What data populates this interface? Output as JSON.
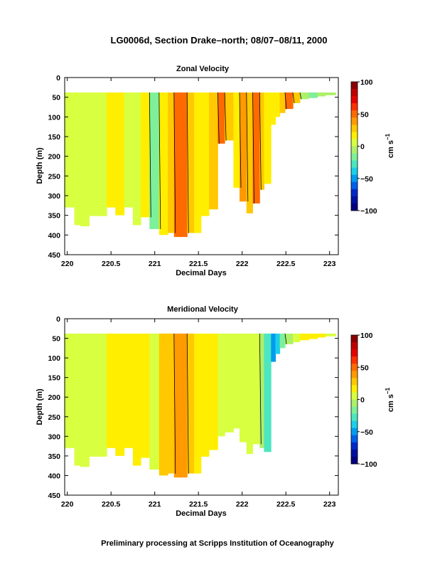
{
  "header": {
    "title": "LG0006d, Section Drake–north; 08/07–08/11, 2000"
  },
  "footer": {
    "text": "Preliminary processing at Scripps Institution of Oceanography"
  },
  "chart_data": [
    {
      "type": "heatmap",
      "title": "Zonal Velocity",
      "xlabel": "Decimal Days",
      "ylabel": "Depth (m)",
      "xlim": [
        219.97,
        223.1
      ],
      "ylim": [
        450,
        0
      ],
      "xticks": [
        220,
        220.5,
        221,
        221.5,
        222,
        222.5,
        223
      ],
      "xtick_labels": [
        "220",
        "220.5",
        "221",
        "221.5",
        "222",
        "222.5",
        "223"
      ],
      "yticks": [
        0,
        50,
        100,
        150,
        200,
        250,
        300,
        350,
        400,
        450
      ],
      "colorbar": {
        "label": "cm s",
        "label_exponent": "−1",
        "ticks": [
          100,
          50,
          0,
          -50,
          -100
        ],
        "tick_labels": [
          "100",
          "50",
          "0",
          "−50",
          "−100"
        ],
        "range": [
          -100,
          100
        ],
        "colors_top_to_bottom": [
          "#8b0000",
          "#c00000",
          "#e60000",
          "#ff3000",
          "#ff6a00",
          "#ff9a00",
          "#ffc800",
          "#ffee00",
          "#d8ff40",
          "#aef06a",
          "#7ef09a",
          "#4ce6c0",
          "#1ccfe8",
          "#009bf0",
          "#0060e8",
          "#0028c8",
          "#0010a0",
          "#000080"
        ]
      },
      "columns": [
        {
          "x0": 219.97,
          "x1": 220.08,
          "bottom": 330,
          "v": 6
        },
        {
          "x0": 220.08,
          "x1": 220.15,
          "bottom": 375,
          "v": 2
        },
        {
          "x0": 220.15,
          "x1": 220.25,
          "bottom": 378,
          "v": 4
        },
        {
          "x0": 220.25,
          "x1": 220.33,
          "bottom": 352,
          "v": 8
        },
        {
          "x0": 220.33,
          "x1": 220.45,
          "bottom": 352,
          "v": 5
        },
        {
          "x0": 220.45,
          "x1": 220.55,
          "bottom": 330,
          "v": 14
        },
        {
          "x0": 220.55,
          "x1": 220.65,
          "bottom": 350,
          "v": 20
        },
        {
          "x0": 220.65,
          "x1": 220.75,
          "bottom": 330,
          "v": 10
        },
        {
          "x0": 220.75,
          "x1": 220.84,
          "bottom": 375,
          "v": 8
        },
        {
          "x0": 220.84,
          "x1": 220.94,
          "bottom": 355,
          "v": 18
        },
        {
          "x0": 220.94,
          "x1": 221.05,
          "bottom": 385,
          "v": -20
        },
        {
          "x0": 221.05,
          "x1": 221.15,
          "bottom": 400,
          "v": 20
        },
        {
          "x0": 221.15,
          "x1": 221.22,
          "bottom": 395,
          "v": 33
        },
        {
          "x0": 221.22,
          "x1": 221.37,
          "bottom": 405,
          "v": 45
        },
        {
          "x0": 221.37,
          "x1": 221.45,
          "bottom": 395,
          "v": 25
        },
        {
          "x0": 221.45,
          "x1": 221.53,
          "bottom": 395,
          "v": 12
        },
        {
          "x0": 221.53,
          "x1": 221.62,
          "bottom": 352,
          "v": 14
        },
        {
          "x0": 221.62,
          "x1": 221.72,
          "bottom": 335,
          "v": 30
        },
        {
          "x0": 221.72,
          "x1": 221.8,
          "bottom": 168,
          "v": 45
        },
        {
          "x0": 221.8,
          "x1": 221.9,
          "bottom": 160,
          "v": 28
        },
        {
          "x0": 221.9,
          "x1": 221.97,
          "bottom": 280,
          "v": 12
        },
        {
          "x0": 221.97,
          "x1": 222.05,
          "bottom": 315,
          "v": 42
        },
        {
          "x0": 222.05,
          "x1": 222.12,
          "bottom": 345,
          "v": 25
        },
        {
          "x0": 222.12,
          "x1": 222.2,
          "bottom": 320,
          "v": 46
        },
        {
          "x0": 222.2,
          "x1": 222.25,
          "bottom": 285,
          "v": 28
        },
        {
          "x0": 222.25,
          "x1": 222.33,
          "bottom": 270,
          "v": 18
        },
        {
          "x0": 222.33,
          "x1": 222.38,
          "bottom": 120,
          "v": 18
        },
        {
          "x0": 222.38,
          "x1": 222.43,
          "bottom": 100,
          "v": 22
        },
        {
          "x0": 222.43,
          "x1": 222.49,
          "bottom": 90,
          "v": 30
        },
        {
          "x0": 222.49,
          "x1": 222.58,
          "bottom": 80,
          "v": 45
        },
        {
          "x0": 222.58,
          "x1": 222.66,
          "bottom": 65,
          "v": 25
        },
        {
          "x0": 222.66,
          "x1": 222.76,
          "bottom": 55,
          "v": -5
        },
        {
          "x0": 222.76,
          "x1": 222.86,
          "bottom": 52,
          "v": -15
        },
        {
          "x0": 222.86,
          "x1": 222.95,
          "bottom": 48,
          "v": -8
        },
        {
          "x0": 222.95,
          "x1": 223.07,
          "bottom": 45,
          "v": 0
        }
      ]
    },
    {
      "type": "heatmap",
      "title": "Meridional Velocity",
      "xlabel": "Decimal Days",
      "ylabel": "Depth (m)",
      "xlim": [
        219.97,
        223.1
      ],
      "ylim": [
        450,
        0
      ],
      "xticks": [
        220,
        220.5,
        221,
        221.5,
        222,
        222.5,
        223
      ],
      "xtick_labels": [
        "220",
        "220.5",
        "221",
        "221.5",
        "222",
        "222.5",
        "223"
      ],
      "yticks": [
        0,
        50,
        100,
        150,
        200,
        250,
        300,
        350,
        400,
        450
      ],
      "colorbar": {
        "label": "cm s",
        "label_exponent": "−1",
        "ticks": [
          100,
          50,
          0,
          -50,
          -100
        ],
        "tick_labels": [
          "100",
          "50",
          "0",
          "−50",
          "−100"
        ],
        "range": [
          -100,
          100
        ],
        "colors_top_to_bottom": [
          "#8b0000",
          "#c00000",
          "#e60000",
          "#ff3000",
          "#ff6a00",
          "#ff9a00",
          "#ffc800",
          "#ffee00",
          "#d8ff40",
          "#aef06a",
          "#7ef09a",
          "#4ce6c0",
          "#1ccfe8",
          "#009bf0",
          "#0060e8",
          "#0028c8",
          "#0010a0",
          "#000080"
        ]
      },
      "columns": [
        {
          "x0": 219.97,
          "x1": 220.08,
          "bottom": 330,
          "v": 2
        },
        {
          "x0": 220.08,
          "x1": 220.15,
          "bottom": 375,
          "v": 4
        },
        {
          "x0": 220.15,
          "x1": 220.25,
          "bottom": 378,
          "v": 2
        },
        {
          "x0": 220.25,
          "x1": 220.33,
          "bottom": 352,
          "v": 5
        },
        {
          "x0": 220.33,
          "x1": 220.45,
          "bottom": 352,
          "v": 6
        },
        {
          "x0": 220.45,
          "x1": 220.55,
          "bottom": 330,
          "v": 12
        },
        {
          "x0": 220.55,
          "x1": 220.65,
          "bottom": 350,
          "v": 14
        },
        {
          "x0": 220.65,
          "x1": 220.75,
          "bottom": 330,
          "v": 18
        },
        {
          "x0": 220.75,
          "x1": 220.84,
          "bottom": 375,
          "v": 22
        },
        {
          "x0": 220.84,
          "x1": 220.94,
          "bottom": 355,
          "v": 20
        },
        {
          "x0": 220.94,
          "x1": 221.05,
          "bottom": 385,
          "v": 8
        },
        {
          "x0": 221.05,
          "x1": 221.15,
          "bottom": 400,
          "v": 24
        },
        {
          "x0": 221.15,
          "x1": 221.22,
          "bottom": 395,
          "v": 30
        },
        {
          "x0": 221.22,
          "x1": 221.37,
          "bottom": 405,
          "v": 40
        },
        {
          "x0": 221.37,
          "x1": 221.45,
          "bottom": 395,
          "v": 28
        },
        {
          "x0": 221.45,
          "x1": 221.53,
          "bottom": 395,
          "v": 20
        },
        {
          "x0": 221.53,
          "x1": 221.62,
          "bottom": 352,
          "v": 18
        },
        {
          "x0": 221.62,
          "x1": 221.72,
          "bottom": 335,
          "v": 14
        },
        {
          "x0": 221.72,
          "x1": 221.8,
          "bottom": 300,
          "v": 10
        },
        {
          "x0": 221.8,
          "x1": 221.9,
          "bottom": 290,
          "v": 8
        },
        {
          "x0": 221.9,
          "x1": 221.97,
          "bottom": 280,
          "v": 4
        },
        {
          "x0": 221.97,
          "x1": 222.05,
          "bottom": 315,
          "v": 8
        },
        {
          "x0": 222.05,
          "x1": 222.12,
          "bottom": 345,
          "v": 4
        },
        {
          "x0": 222.12,
          "x1": 222.2,
          "bottom": 320,
          "v": 6
        },
        {
          "x0": 222.2,
          "x1": 222.25,
          "bottom": 330,
          "v": -10
        },
        {
          "x0": 222.25,
          "x1": 222.33,
          "bottom": 340,
          "v": -30
        },
        {
          "x0": 222.33,
          "x1": 222.38,
          "bottom": 110,
          "v": -55
        },
        {
          "x0": 222.38,
          "x1": 222.43,
          "bottom": 90,
          "v": -40
        },
        {
          "x0": 222.43,
          "x1": 222.49,
          "bottom": 75,
          "v": -20
        },
        {
          "x0": 222.49,
          "x1": 222.58,
          "bottom": 65,
          "v": 0
        },
        {
          "x0": 222.58,
          "x1": 222.66,
          "bottom": 60,
          "v": 10
        },
        {
          "x0": 222.66,
          "x1": 222.76,
          "bottom": 55,
          "v": 14
        },
        {
          "x0": 222.76,
          "x1": 222.86,
          "bottom": 52,
          "v": 18
        },
        {
          "x0": 222.86,
          "x1": 222.95,
          "bottom": 48,
          "v": 16
        },
        {
          "x0": 222.95,
          "x1": 223.07,
          "bottom": 45,
          "v": 10
        }
      ]
    }
  ]
}
